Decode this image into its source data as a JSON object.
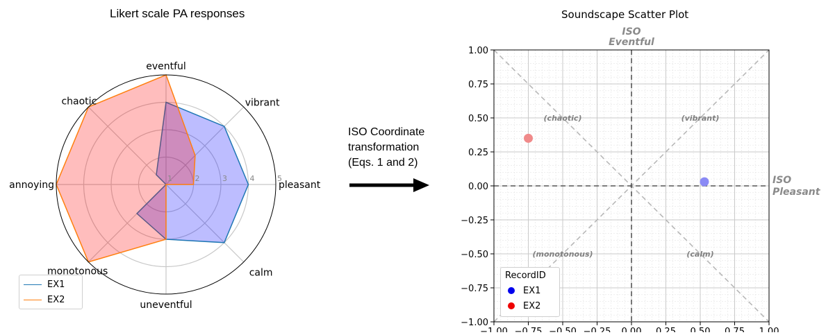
{
  "radar": {
    "title": "Likert scale PA responses",
    "chart_data": {
      "type": "radar",
      "axes": [
        "pleasant",
        "vibrant",
        "eventful",
        "chaotic",
        "annoying",
        "monotonous",
        "uneventful",
        "calm"
      ],
      "r_ticks": [
        "1",
        "2",
        "3",
        "4",
        "5"
      ],
      "rlim": [
        1,
        5
      ],
      "series": [
        {
          "name": "EX1",
          "values": [
            4,
            4,
            4,
            1.5,
            1,
            2.5,
            3,
            4
          ],
          "color": "#1f77b4",
          "fill": "#0000ff"
        },
        {
          "name": "EX2",
          "values": [
            2,
            2.5,
            5,
            5,
            5,
            5,
            3,
            1
          ],
          "color": "#ff7f0e",
          "fill": "#ff0000"
        }
      ],
      "legend": "lower-left"
    }
  },
  "transform": {
    "lines": [
      "ISO Coordinate",
      "transformation",
      "(Eqs. 1 and 2)"
    ]
  },
  "scatter": {
    "title": "Soundscape Scatter Plot",
    "chart_data": {
      "type": "scatter",
      "xlim": [
        -1,
        1
      ],
      "ylim": [
        -1,
        1
      ],
      "x_ticks": [
        "−1.00",
        "−0.75",
        "−0.50",
        "−0.25",
        "0.00",
        "0.25",
        "0.50",
        "0.75",
        "1.00"
      ],
      "y_ticks": [
        "1.00",
        "0.75",
        "0.50",
        "0.25",
        "0.00",
        "−0.25",
        "−0.50",
        "−0.75",
        "−1.00"
      ],
      "axis_labels": {
        "top": [
          "ISO",
          "Eventful"
        ],
        "right": [
          "ISO",
          "Pleasant"
        ]
      },
      "quadrant_labels": [
        {
          "text": "(chaotic)",
          "x": -0.5,
          "y": 0.5
        },
        {
          "text": "(vibrant)",
          "x": 0.5,
          "y": 0.5
        },
        {
          "text": "(monotonous)",
          "x": -0.5,
          "y": -0.5
        },
        {
          "text": "(calm)",
          "x": 0.5,
          "y": -0.5
        }
      ],
      "points": [
        {
          "name": "EX1",
          "x": 0.53,
          "y": 0.03,
          "color": "#8a8af5"
        },
        {
          "name": "EX2",
          "x": -0.75,
          "y": 0.35,
          "color": "#f08a8a"
        }
      ],
      "legend": {
        "title": "RecordID",
        "entries": [
          {
            "name": "EX1",
            "color": "#0000ee"
          },
          {
            "name": "EX2",
            "color": "#ee0000"
          }
        ],
        "placement": "lower-left"
      },
      "grid": true
    }
  }
}
